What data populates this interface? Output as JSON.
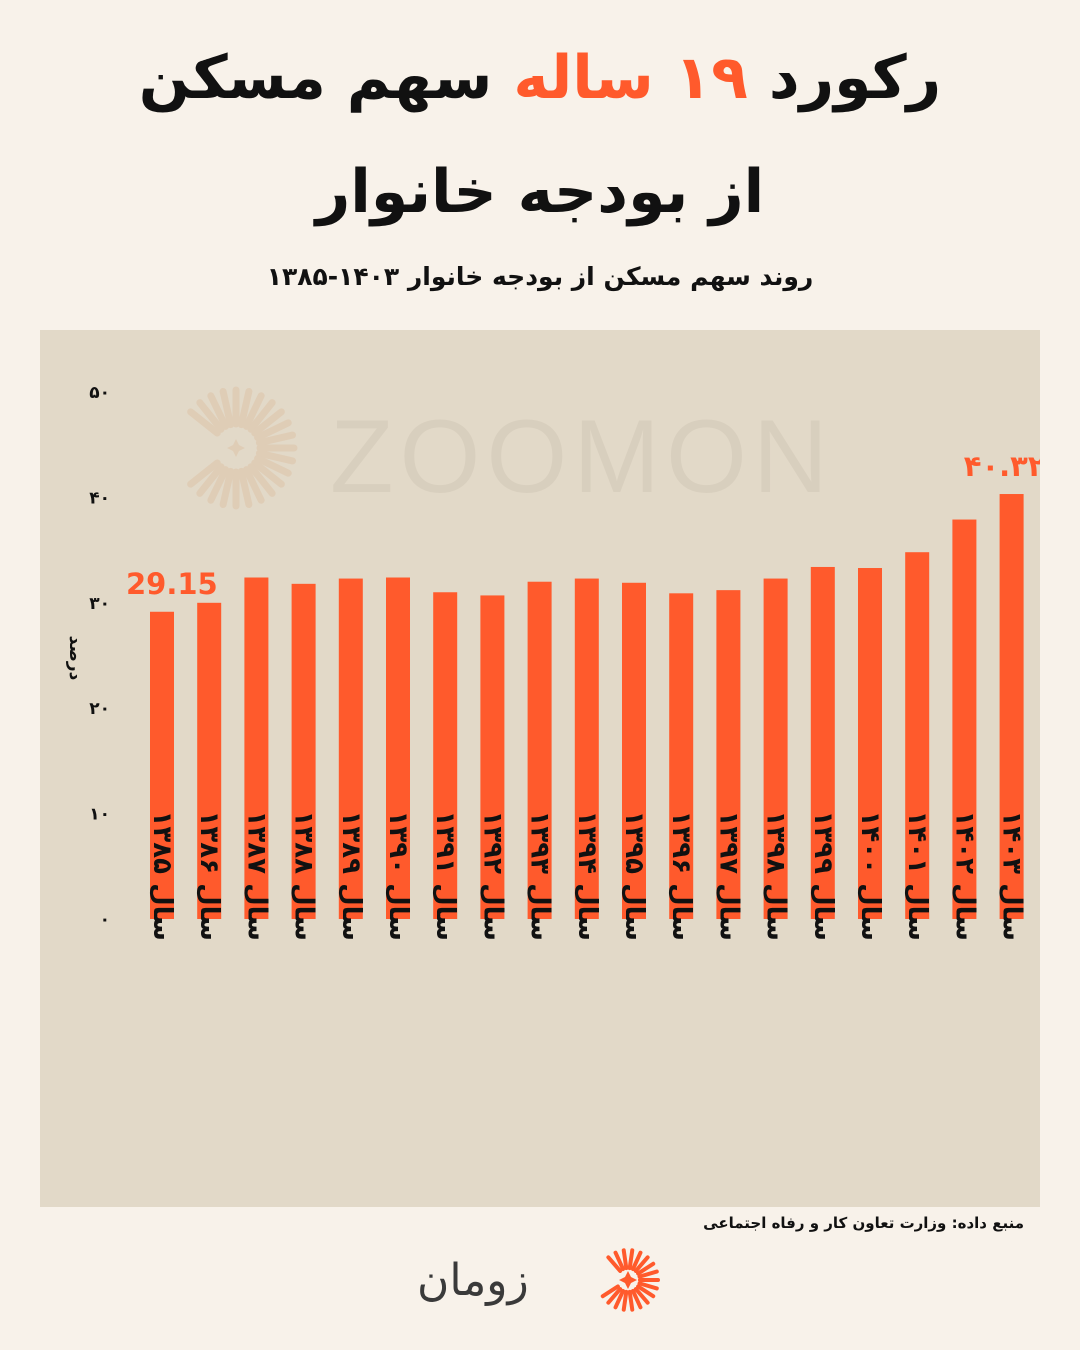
{
  "header": {
    "title_line1_part1": "رکورد",
    "title_line1_accent": "۱۹ ساله",
    "title_line1_part2": "سهم مسکن",
    "title_line2": "از بودجه خانوار",
    "subtitle": "روند سهم مسکن از بودجه خانوار ۱۴۰۳-۱۳۸۵"
  },
  "watermark": {
    "text": "ZOOMON"
  },
  "footer": {
    "source": "منبع داده: وزارت تعاون کار و رفاه اجتماعی",
    "logo_text": "زومان"
  },
  "colors": {
    "background": "#f8f2ea",
    "panel": "#e2d9c8",
    "bar": "#ff5a2c",
    "accent": "#ff5a2c",
    "text": "#111111"
  },
  "chart_data": {
    "type": "bar",
    "ylabel": "درصد",
    "ylim": [
      0,
      50
    ],
    "yticks": [
      0,
      10,
      20,
      30,
      40,
      50
    ],
    "ytick_labels": [
      "۰",
      "۱۰",
      "۲۰",
      "۳۰",
      "۴۰",
      "۵۰"
    ],
    "grid": false,
    "categories": [
      "سال ۱۳۸۵",
      "سال ۱۳۸۶",
      "سال ۱۳۸۷",
      "سال ۱۳۸۸",
      "سال ۱۳۸۹",
      "سال ۱۳۹۰",
      "سال ۱۳۹۱",
      "سال ۱۳۹۲",
      "سال ۱۳۹۳",
      "سال ۱۳۹۴",
      "سال ۱۳۹۵",
      "سال ۱۳۹۶",
      "سال ۱۳۹۷",
      "سال ۱۳۹۸",
      "سال ۱۳۹۹",
      "سال ۱۴۰۰",
      "سال ۱۴۰۱",
      "سال ۱۴۰۲",
      "سال ۱۴۰۳"
    ],
    "values": [
      29.15,
      30.0,
      32.4,
      31.8,
      32.3,
      32.4,
      31.0,
      30.7,
      32.0,
      32.3,
      31.9,
      30.9,
      31.2,
      32.3,
      33.4,
      33.3,
      34.8,
      37.9,
      40.32
    ],
    "data_labels": [
      {
        "index": 0,
        "text": "29.15"
      },
      {
        "index": 18,
        "text": "۴۰.۳۲"
      }
    ]
  }
}
